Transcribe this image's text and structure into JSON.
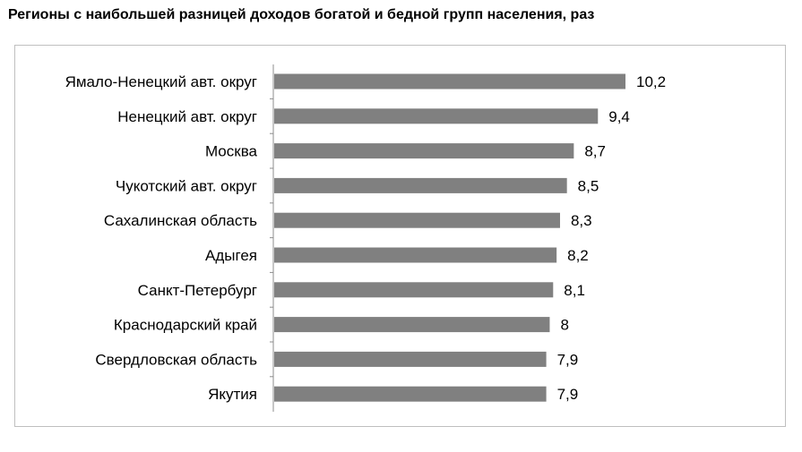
{
  "title": "Регионы с наибольшей разницей доходов богатой и бедной групп населения, раз",
  "colors": {
    "bar": "#808080",
    "axis": "#8c8c8c",
    "frame": "#bfbfbf"
  },
  "chart_data": {
    "type": "bar",
    "orientation": "horizontal",
    "title": "Регионы с наибольшей разницей доходов богатой и бедной групп населения, раз",
    "categories": [
      "Ямало-Ненецкий авт. округ",
      "Ненецкий авт. округ",
      "Москва",
      "Чукотский авт. округ",
      "Сахалинская область",
      "Адыгея",
      "Санкт-Петербург",
      "Краснодарский край",
      "Свердловская область",
      "Якутия"
    ],
    "values": [
      10.2,
      9.4,
      8.7,
      8.5,
      8.3,
      8.2,
      8.1,
      8,
      7.9,
      7.9
    ],
    "value_labels": [
      "10,2",
      "9,4",
      "8,7",
      "8,5",
      "8,3",
      "8,2",
      "8,1",
      "8",
      "7,9",
      "7,9"
    ],
    "xlim": [
      0,
      10.2
    ],
    "grid": false,
    "legend": "none"
  }
}
